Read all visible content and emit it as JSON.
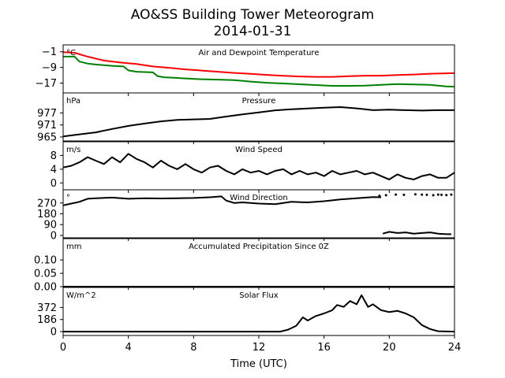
{
  "chart_data": {
    "type": "line",
    "title": "AO&SS Building Tower Meteorogram",
    "subtitle": "2014-01-31",
    "xlabel": "Time (UTC)",
    "xlim": [
      0,
      24
    ],
    "xticks": [
      "0",
      "4",
      "8",
      "12",
      "16",
      "20",
      "24"
    ],
    "panels": [
      {
        "name": "temperature",
        "title": "Air and Dewpoint Temperature",
        "unit": "°C",
        "ylim": [
          -22,
          2.5
        ],
        "yticks": [
          -1,
          -9,
          -17
        ],
        "ytick_labels": [
          "−1",
          "−9",
          "−17"
        ],
        "series": [
          {
            "color": "#ff0000",
            "x": [
              0,
              0.7,
              1.5,
              2.5,
              3.5,
              4.5,
              5.5,
              6.5,
              7.5,
              8.5,
              9.5,
              10.5,
              11.5,
              12.5,
              13.5,
              14.5,
              15.5,
              16.5,
              17.5,
              18.5,
              19.5,
              20.5,
              21.5,
              22.5,
              23.5,
              24
            ],
            "values": [
              -1.2,
              -1.5,
              -3.5,
              -5.5,
              -6.5,
              -7.2,
              -8.5,
              -9.2,
              -10,
              -10.6,
              -11.2,
              -11.8,
              -12.3,
              -12.8,
              -13.3,
              -13.6,
              -13.8,
              -13.8,
              -13.5,
              -13.2,
              -13.2,
              -12.9,
              -12.6,
              -12.2,
              -12.0,
              -11.9
            ]
          },
          {
            "color": "#008000",
            "x": [
              0,
              0.7,
              1,
              1.5,
              2,
              3,
              3.7,
              4,
              4.5,
              5.5,
              5.8,
              6.2,
              6.8,
              7.5,
              8.5,
              9.5,
              10.5,
              11.5,
              12.5,
              13.5,
              14.5,
              15.5,
              16.5,
              17.5,
              18.5,
              19.5,
              20.5,
              21.5,
              22.5,
              23.5,
              24
            ],
            "values": [
              -3.5,
              -3.5,
              -6,
              -7,
              -7.5,
              -8.2,
              -8.5,
              -10.5,
              -11.2,
              -11.5,
              -13.5,
              -14,
              -14.3,
              -14.6,
              -15.0,
              -15.2,
              -15.5,
              -16.2,
              -16.8,
              -17.2,
              -17.6,
              -18.0,
              -18.4,
              -18.4,
              -18.3,
              -17.9,
              -17.5,
              -17.7,
              -17.9,
              -18.7,
              -18.8
            ]
          }
        ]
      },
      {
        "name": "pressure",
        "title": "Pressure",
        "unit": "hPa",
        "ylim": [
          963,
          987
        ],
        "yticks": [
          965,
          971,
          977
        ],
        "ytick_labels": [
          "965",
          "971",
          "977"
        ],
        "series": [
          {
            "color": "#000000",
            "x": [
              0,
              1,
              2,
              3,
              4,
              5,
              6,
              7,
              8,
              9,
              10,
              11,
              12,
              13,
              14,
              15,
              16,
              17,
              18,
              19,
              20,
              21,
              22,
              23,
              24
            ],
            "values": [
              965.3,
              966.3,
              967.3,
              969.0,
              970.5,
              971.7,
              972.8,
              973.5,
              973.8,
              974.0,
              975.2,
              976.3,
              977.3,
              978.3,
              978.8,
              979.2,
              979.6,
              979.9,
              979.3,
              978.4,
              978.6,
              978.4,
              978.2,
              978.4,
              978.4
            ]
          }
        ]
      },
      {
        "name": "wind-speed",
        "title": "Wind Speed",
        "unit": "m/s",
        "ylim": [
          -2,
          12
        ],
        "yticks": [
          0,
          4,
          8
        ],
        "ytick_labels": [
          "0",
          "4",
          "8"
        ],
        "series": [
          {
            "color": "#000000",
            "x": [
              0,
              0.5,
              1,
              1.5,
              2,
              2.5,
              3,
              3.5,
              4,
              4.5,
              5,
              5.5,
              6,
              6.5,
              7,
              7.5,
              8,
              8.5,
              9,
              9.5,
              10,
              10.5,
              11,
              11.5,
              12,
              12.5,
              13,
              13.5,
              14,
              14.5,
              15,
              15.5,
              16,
              16.5,
              17,
              17.5,
              18,
              18.5,
              19,
              19.5,
              20,
              20.5,
              21,
              21.5,
              22,
              22.5,
              23,
              23.5,
              24
            ],
            "values": [
              4.5,
              5,
              6,
              7.5,
              6.5,
              5.5,
              7.5,
              6,
              8.5,
              7,
              6,
              4.5,
              6.5,
              5,
              4,
              5.5,
              4,
              3,
              4.5,
              5,
              3.5,
              2.5,
              4,
              3,
              3.5,
              2.5,
              3.5,
              4,
              2.5,
              3.5,
              2.5,
              3,
              2,
              3.5,
              2.5,
              3,
              3.5,
              2.5,
              3,
              2,
              1,
              2.5,
              1.5,
              1,
              2,
              2.5,
              1.5,
              1.5,
              3
            ]
          }
        ]
      },
      {
        "name": "wind-direction",
        "title": "Wind Direction",
        "unit": "°",
        "ylim": [
          -20,
          380
        ],
        "yticks": [
          0,
          90,
          180,
          270
        ],
        "ytick_labels": [
          "0",
          "90",
          "180",
          "270"
        ],
        "series": [
          {
            "color": "#000000",
            "x": [
              0,
              0.5,
              1,
              1.5,
              2,
              3,
              4,
              5,
              6,
              7,
              8,
              9,
              9.7,
              10,
              10.5,
              11,
              12,
              13,
              14,
              15,
              16,
              17,
              18,
              19,
              19.5
            ],
            "values": [
              250,
              265,
              280,
              305,
              310,
              315,
              305,
              310,
              308,
              310,
              312,
              318,
              325,
              290,
              270,
              275,
              265,
              260,
              280,
              275,
              285,
              300,
              310,
              320,
              318
            ]
          },
          {
            "color": "#000000",
            "x": [
              19.6,
              20,
              20.5,
              21,
              21.5,
              22,
              22.5,
              23,
              23.5,
              23.8
            ],
            "values": [
              15,
              30,
              20,
              25,
              15,
              20,
              25,
              15,
              10,
              10
            ]
          }
        ],
        "scatter": {
          "color": "#000000",
          "x": [
            19.4,
            19.8,
            20.4,
            20.9,
            21.6,
            22.0,
            22.3,
            22.7,
            23.0,
            23.2,
            23.5,
            23.8
          ],
          "values": [
            330,
            335,
            340,
            338,
            342,
            340,
            338,
            335,
            340,
            338,
            336,
            340
          ]
        }
      },
      {
        "name": "precipitation",
        "title": "Accumulated Precipitation Since 0Z",
        "unit": "mm",
        "ylim": [
          0,
          0.18
        ],
        "yticks": [
          0.0,
          0.05,
          0.1
        ],
        "ytick_labels": [
          "0.00",
          "0.05",
          "0.10"
        ],
        "series": [
          {
            "color": "#000000",
            "x": [
              0,
              24
            ],
            "values": [
              0,
              0
            ]
          }
        ]
      },
      {
        "name": "solar-flux",
        "title": "Solar Flux",
        "unit": "W/m^2",
        "ylim": [
          -60,
          680
        ],
        "yticks": [
          0,
          186,
          372
        ],
        "ytick_labels": [
          "0",
          "186",
          "372"
        ],
        "series": [
          {
            "color": "#000000",
            "x": [
              0,
              13.3,
              13.8,
              14.3,
              14.7,
              15,
              15.5,
              16,
              16.5,
              16.8,
              17.2,
              17.6,
              18,
              18.3,
              18.7,
              19,
              19.5,
              20,
              20.5,
              21,
              21.5,
              22,
              22.5,
              23,
              24
            ],
            "values": [
              0,
              0,
              30,
              90,
              220,
              170,
              240,
              280,
              330,
              410,
              380,
              470,
              420,
              560,
              380,
              420,
              330,
              300,
              320,
              280,
              220,
              100,
              40,
              5,
              0
            ]
          }
        ]
      }
    ]
  }
}
